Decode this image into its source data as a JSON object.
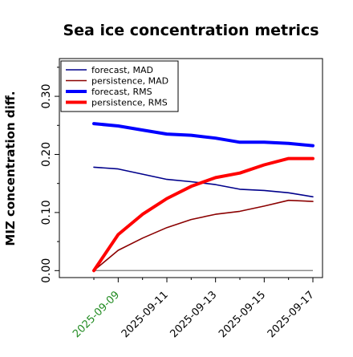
{
  "chart_data": {
    "type": "line",
    "title": "Sea ice concentration metrics",
    "xlabel": "",
    "ylabel": "MIZ concentration diff.",
    "x": [
      "2025-09-08",
      "2025-09-09",
      "2025-09-10",
      "2025-09-11",
      "2025-09-12",
      "2025-09-13",
      "2025-09-14",
      "2025-09-15",
      "2025-09-16",
      "2025-09-17"
    ],
    "x_tick_labels": [
      "2025-09-09",
      "2025-09-11",
      "2025-09-13",
      "2025-09-15",
      "2025-09-17"
    ],
    "highlighted_tick": "2025-09-09",
    "ylim": [
      -0.012,
      0.365
    ],
    "y_ticks": [
      "0.00",
      "0.10",
      "0.20",
      "0.30"
    ],
    "y_tick_values": [
      0.0,
      0.1,
      0.2,
      0.3
    ],
    "reference_line": 0.0,
    "legend_position": "top-left",
    "series": [
      {
        "name": "forecast,  MAD",
        "color": "#00008b",
        "style": "thin",
        "values": [
          0.178,
          0.175,
          0.166,
          0.157,
          0.153,
          0.148,
          0.14,
          0.138,
          0.134,
          0.127
        ]
      },
      {
        "name": "persistence, MAD",
        "color": "#8b0000",
        "style": "thin",
        "values": [
          0.0,
          0.035,
          0.056,
          0.074,
          0.088,
          0.097,
          0.102,
          0.111,
          0.121,
          0.119
        ]
      },
      {
        "name": "forecast,  RMS",
        "color": "#0000ff",
        "style": "thick",
        "values": [
          0.253,
          0.249,
          0.242,
          0.235,
          0.233,
          0.228,
          0.221,
          0.221,
          0.219,
          0.215
        ]
      },
      {
        "name": "persistence, RMS",
        "color": "#ff0000",
        "style": "thick",
        "values": [
          0.0,
          0.062,
          0.097,
          0.124,
          0.145,
          0.16,
          0.168,
          0.182,
          0.193,
          0.193
        ]
      }
    ],
    "colors": {
      "axis": "#000000",
      "highlight_tick": "#228b22",
      "reference_line": "#8c8c8c"
    }
  }
}
